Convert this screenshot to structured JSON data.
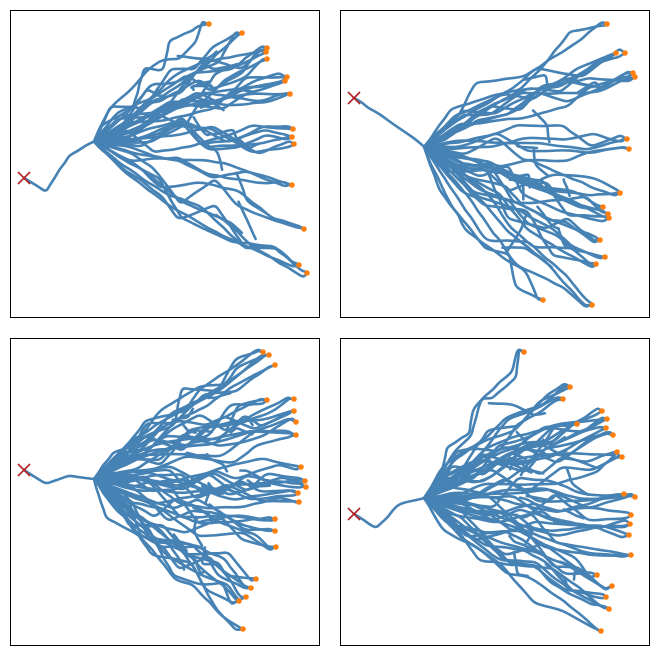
{
  "figure": {
    "panels": 4,
    "colors": {
      "path": "#4682b4",
      "terminal": "#ff7f0e",
      "origin_marker": "#b22222",
      "frame": "#000000",
      "background": "#ffffff"
    },
    "icons": {
      "origin": "x-marker-icon",
      "terminal": "dot-marker-icon"
    }
  }
}
